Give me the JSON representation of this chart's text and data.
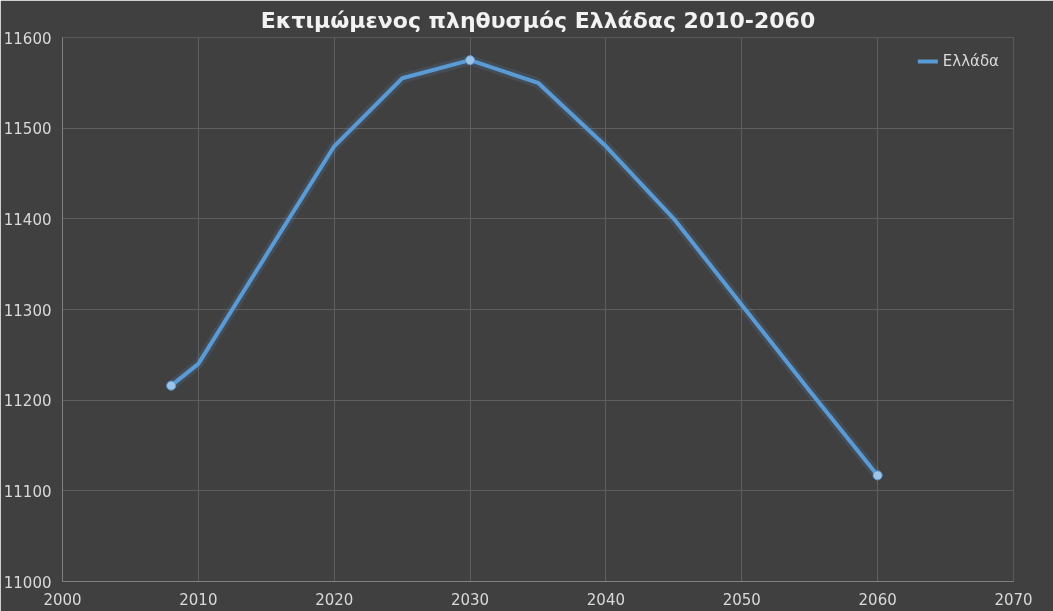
{
  "chart_data": {
    "type": "line",
    "title": "Εκτιμώμενος πληθυσμός Ελλάδας 2010-2060",
    "xlim": [
      2000,
      2070
    ],
    "xticks": [
      2000,
      2010,
      2020,
      2030,
      2040,
      2050,
      2060,
      2070
    ],
    "ylim": [
      11000,
      11600
    ],
    "yticks": [
      11000,
      11100,
      11200,
      11300,
      11400,
      11500,
      11600
    ],
    "series": [
      {
        "name": "Ελλάδα",
        "color": "#5b9bd5",
        "x": [
          2008,
          2010,
          2015,
          2020,
          2025,
          2030,
          2035,
          2040,
          2045,
          2050,
          2055,
          2060
        ],
        "values": [
          11216,
          11240,
          11360,
          11480,
          11555,
          11575,
          11550,
          11480,
          11400,
          11305,
          11210,
          11117
        ]
      },
      {
        "type": "scatter",
        "color": "#5b9bd5",
        "marker": "circle",
        "x": [
          2008,
          2030,
          2060
        ],
        "values": [
          11216,
          11575,
          11117
        ]
      }
    ],
    "grid": true,
    "legend": "top right",
    "line_style": "solid"
  }
}
